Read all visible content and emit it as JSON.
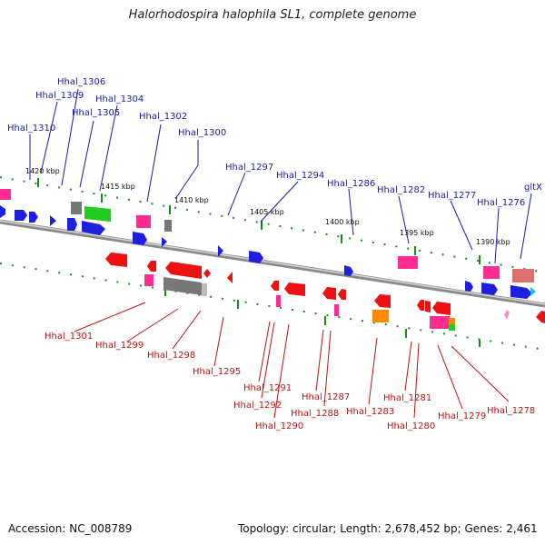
{
  "title": "Halorhodospira halophila SL1, complete genome",
  "accession": "Accession: NC_008789",
  "topology": "Topology: circular; Length: 2,678,452 bp; Genes: 2,461",
  "colors": {
    "forward_gene": "#1f1fe0",
    "reverse_gene": "#ee1111",
    "rna_gene": "#ff2d8f",
    "pseudo_gene": "#888888",
    "green_feature": "#22cc22",
    "orange_feature": "#ff8a00",
    "backbone": "#8a8a8a",
    "ticks": "#1a8a1a",
    "top_label": "#1a1aa8",
    "bottom_label": "#c01010"
  },
  "kbp_labels": [
    "1420 kbp",
    "1415 kbp",
    "1410 kbp",
    "1405 kbp",
    "1400 kbp",
    "1395 kbp",
    "1390 kbp"
  ],
  "top_genes": [
    "Hhal_1306",
    "Hhal_1309",
    "Hhal_1304",
    "Hhal_1305",
    "Hhal_1310",
    "Hhal_1302",
    "Hhal_1300",
    "Hhal_1297",
    "Hhal_1294",
    "Hhal_1286",
    "Hhal_1282",
    "Hhal_1277",
    "Hhal_1276",
    "gltX"
  ],
  "bottom_genes": [
    "Hhal_1301",
    "Hhal_1299",
    "Hhal_1298",
    "Hhal_1295",
    "Hhal_1291",
    "Hhal_1292",
    "Hhal_1290",
    "Hhal_1287",
    "Hhal_1288",
    "Hhal_1283",
    "Hhal_1281",
    "Hhal_1280",
    "Hhal_1279",
    "Hhal_1278"
  ]
}
